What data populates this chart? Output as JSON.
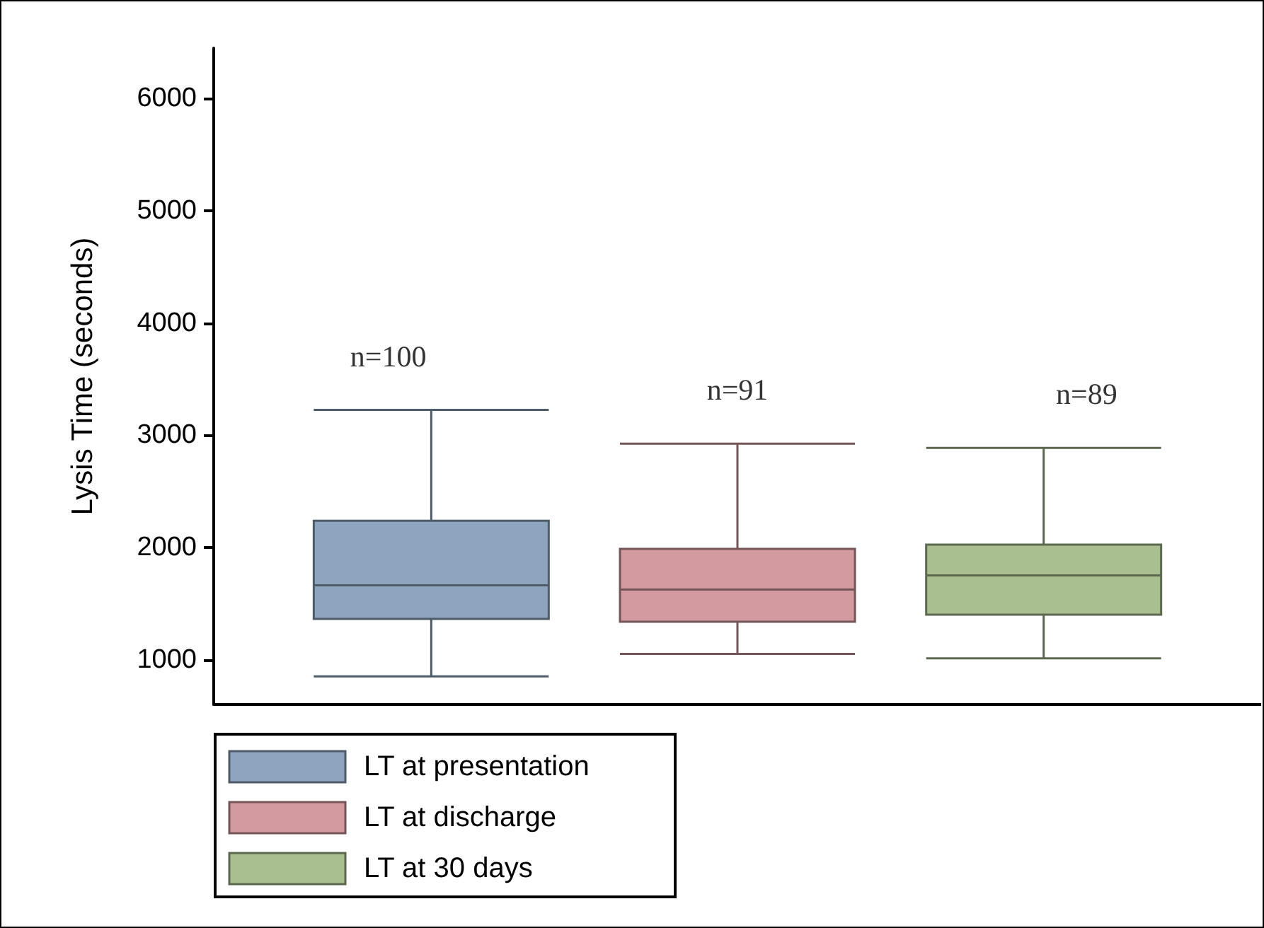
{
  "chart_data": {
    "type": "box",
    "ylabel": "Lysis Time (seconds)",
    "categories": [
      null
    ],
    "ylim": [
      600,
      6450
    ],
    "yticks": [
      1000,
      2000,
      3000,
      4000,
      5000,
      6000
    ],
    "series": [
      {
        "name": "LT at presentation",
        "color": "#8ea5bf",
        "boxes": [
          {
            "low": 850,
            "q1": 1362,
            "median": 1662,
            "q3": 2237,
            "high": 3225
          }
        ]
      },
      {
        "name": "LT at discharge",
        "color": "#d39aa0",
        "boxes": [
          {
            "low": 1050,
            "q1": 1337,
            "median": 1625,
            "q3": 1987,
            "high": 2925
          }
        ]
      },
      {
        "name": "LT at 30 days",
        "color": "#a9bf90",
        "boxes": [
          {
            "low": 1012,
            "q1": 1400,
            "median": 1750,
            "q3": 2025,
            "high": 2887
          }
        ]
      }
    ],
    "annotations": [
      "n=100",
      "n=91",
      "n=89"
    ],
    "legend": "bottom left"
  }
}
